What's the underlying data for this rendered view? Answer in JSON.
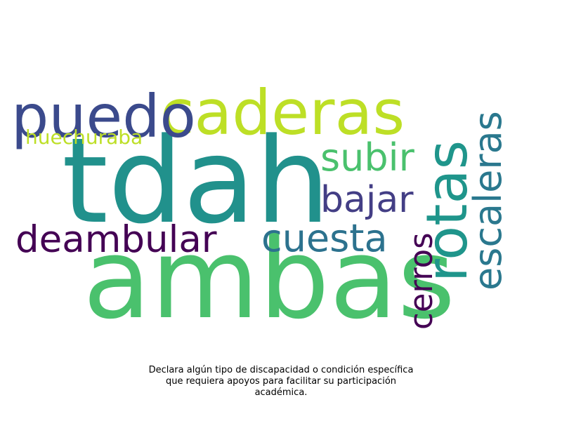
{
  "words": [
    {
      "text": "tdah",
      "color": "#21918c"
    },
    {
      "text": "ambas",
      "color": "#4ac16d"
    },
    {
      "text": "caderas",
      "color": "#bddf26"
    },
    {
      "text": "puedo",
      "color": "#3b4a8c"
    },
    {
      "text": "rotas",
      "color": "#1f958b"
    },
    {
      "text": "escaleras",
      "color": "#2a788e"
    },
    {
      "text": "subir",
      "color": "#4ac16d"
    },
    {
      "text": "bajar",
      "color": "#433e85"
    },
    {
      "text": "cuesta",
      "color": "#2c728e"
    },
    {
      "text": "deambular",
      "color": "#440154"
    },
    {
      "text": "cerros",
      "color": "#440154"
    },
    {
      "text": "huechuraba",
      "color": "#bddf26"
    }
  ],
  "caption": {
    "line1": "Declara algún tipo de discapacidad o condición específica",
    "line2": "que requiera apoyos para facilitar su participación",
    "line3": "académica."
  }
}
